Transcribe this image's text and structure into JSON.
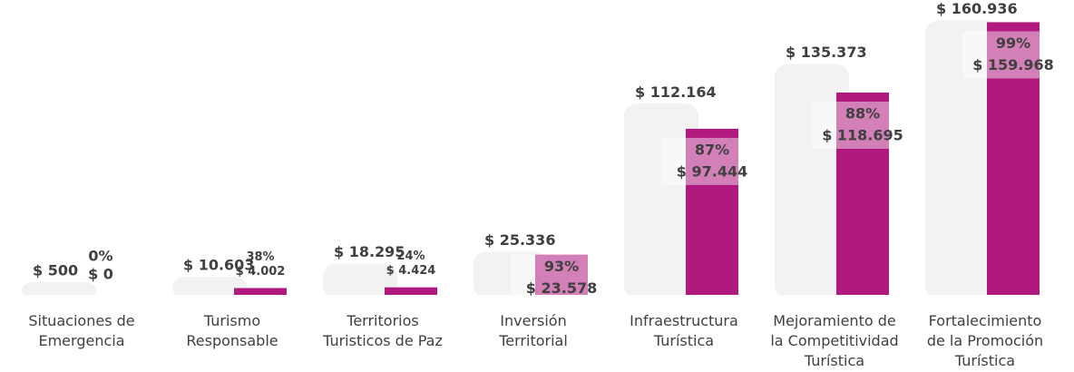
{
  "chart_data": {
    "type": "bar",
    "categories": [
      [
        "Situaciones de",
        "Emergencia"
      ],
      [
        "Turismo",
        "Responsable"
      ],
      [
        "Territorios",
        "Turisticos de Paz"
      ],
      [
        "Inversión",
        "Territorial"
      ],
      [
        "Infraestructura",
        "Turística"
      ],
      [
        "Mejoramiento de",
        "la Competitividad",
        "Turística"
      ],
      [
        "Fortalecimiento",
        "de la Promoción",
        "Turística"
      ]
    ],
    "series": [
      {
        "color": "#f2f2f2",
        "values": [
          500,
          10603,
          18295,
          25336,
          112164,
          135373,
          160936
        ],
        "value_labels": [
          "$ 500",
          "$ 10.603",
          "$ 18.295",
          "$ 25.336",
          "$ 112.164",
          "$ 135.373",
          "$ 160.936"
        ]
      },
      {
        "color": "#b0197e",
        "values": [
          0,
          4002,
          4424,
          23578,
          97444,
          118695,
          159968
        ],
        "value_labels": [
          "$ 0",
          "$ 4.002",
          "$ 4.424",
          "$ 23.578",
          "$ 97.444",
          "$ 118.695",
          "$ 159.968"
        ],
        "percent_labels": [
          "0%",
          "38%",
          "24%",
          "93%",
          "87%",
          "88%",
          "99%"
        ]
      }
    ],
    "ylim": [
      0,
      165000
    ]
  }
}
